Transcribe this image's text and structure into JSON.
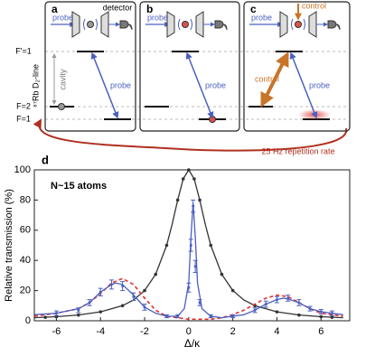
{
  "diagram": {
    "panels": [
      {
        "label": "a",
        "probe_in": "probe",
        "detector": "detector",
        "probe_arrow": "probe"
      },
      {
        "label": "b",
        "probe_in": "probe",
        "probe_arrow": "probe"
      },
      {
        "label": "c",
        "probe_in": "probe",
        "probe_arrow": "probe",
        "control_top": "control",
        "control_arrow": "control"
      }
    ],
    "levels": [
      "F'=1",
      "F=2",
      "F=1"
    ],
    "axis_label": "⁸⁷Rb D₂-line",
    "cavity": "cavity",
    "repetition": "25 Hz repetition rate"
  },
  "chart_data": {
    "type": "line",
    "panel_label": "d",
    "annotation": "N~15 atoms",
    "xlabel": "Δ/κ",
    "ylabel": "Relative transmission (%)",
    "xlim": [
      -7,
      7.3
    ],
    "xticks": [
      -6,
      -4,
      -2,
      0,
      2,
      4,
      6
    ],
    "ylim": [
      0,
      100
    ],
    "yticks": [
      0,
      20,
      40,
      60,
      80,
      100
    ],
    "series": [
      {
        "kind": "line",
        "color": "#333333",
        "x": [
          -7,
          -6,
          -5,
          -4,
          -3,
          -2.5,
          -2,
          -1.5,
          -1,
          -0.75,
          -0.5,
          -0.25,
          0,
          0.25,
          0.5,
          0.75,
          1,
          1.5,
          2,
          2.5,
          3,
          4,
          5,
          6,
          7
        ],
        "values": [
          2,
          2.7,
          3.8,
          5.9,
          10,
          13.8,
          20,
          30.8,
          50,
          64,
          80,
          94,
          100,
          94,
          80,
          64,
          50,
          30.8,
          20,
          13.8,
          10,
          5.9,
          3.8,
          2.7,
          2
        ]
      },
      {
        "kind": "points",
        "color": "#333333",
        "x": [
          -6.5,
          -6,
          -5,
          -4,
          -3,
          -2,
          -1.5,
          -1,
          -0.5,
          -0.25,
          0,
          0.25,
          0.5,
          1,
          1.5,
          2,
          3,
          4,
          5,
          6,
          6.5
        ],
        "values": [
          2.3,
          2.7,
          3.8,
          5.9,
          10,
          20,
          30.8,
          50,
          80,
          94,
          100,
          94,
          80,
          50,
          30.8,
          20,
          10,
          5.9,
          3.8,
          2.7,
          2.3
        ]
      },
      {
        "kind": "dashed",
        "color": "#e03030",
        "x": [
          -7,
          -6,
          -5,
          -4.5,
          -4,
          -3.5,
          -3,
          -2.5,
          -2,
          -1.5,
          -1,
          0,
          1,
          1.5,
          2,
          2.5,
          3,
          3.5,
          4,
          4.5,
          5,
          5.5,
          6,
          7
        ],
        "values": [
          3,
          5,
          8,
          12,
          18,
          25,
          28,
          24,
          15,
          7,
          3,
          1,
          1,
          2,
          4,
          7,
          11,
          15,
          17,
          16,
          12,
          8,
          5,
          3
        ]
      },
      {
        "kind": "line",
        "color": "#4a5fc0",
        "x": [
          -7,
          -6,
          -5,
          -4.5,
          -4,
          -3.5,
          -3.3,
          -3,
          -2.5,
          -2,
          -1.5,
          -1,
          -0.5,
          -0.2,
          0,
          0.1,
          0.2,
          0.3,
          0.4,
          0.6,
          1,
          1.5,
          2,
          2.5,
          3,
          3.5,
          4,
          4.3,
          4.6,
          5,
          5.5,
          6,
          7
        ],
        "values": [
          4,
          5,
          8,
          12,
          19,
          24,
          25,
          24,
          17,
          9,
          5,
          3,
          3,
          8,
          25,
          55,
          78,
          55,
          25,
          8,
          3,
          2,
          3,
          4,
          7,
          11,
          14,
          15,
          14,
          12,
          8,
          6,
          4
        ]
      },
      {
        "kind": "errorpoints",
        "color": "#4a5fc0",
        "x": [
          -6,
          -5,
          -4.5,
          -4,
          -3.5,
          -3,
          -2.5,
          -2,
          -1,
          -0.5,
          0,
          0.1,
          0.2,
          0.3,
          0.5,
          1,
          2,
          3,
          3.5,
          4,
          4.5,
          5,
          5.5,
          6,
          6.5
        ],
        "values": [
          5,
          7,
          12,
          19,
          24,
          23,
          16,
          9,
          3,
          3,
          22,
          50,
          76,
          36,
          12,
          3,
          3,
          7,
          11,
          14,
          15,
          12,
          8,
          6,
          5
        ],
        "errors": [
          1.5,
          1.5,
          2,
          2.5,
          3,
          3,
          2.5,
          2,
          1,
          1,
          3,
          4,
          4,
          4,
          2,
          1,
          1,
          1.5,
          2,
          2,
          2,
          2,
          1.5,
          1.5,
          1.5
        ]
      }
    ]
  }
}
